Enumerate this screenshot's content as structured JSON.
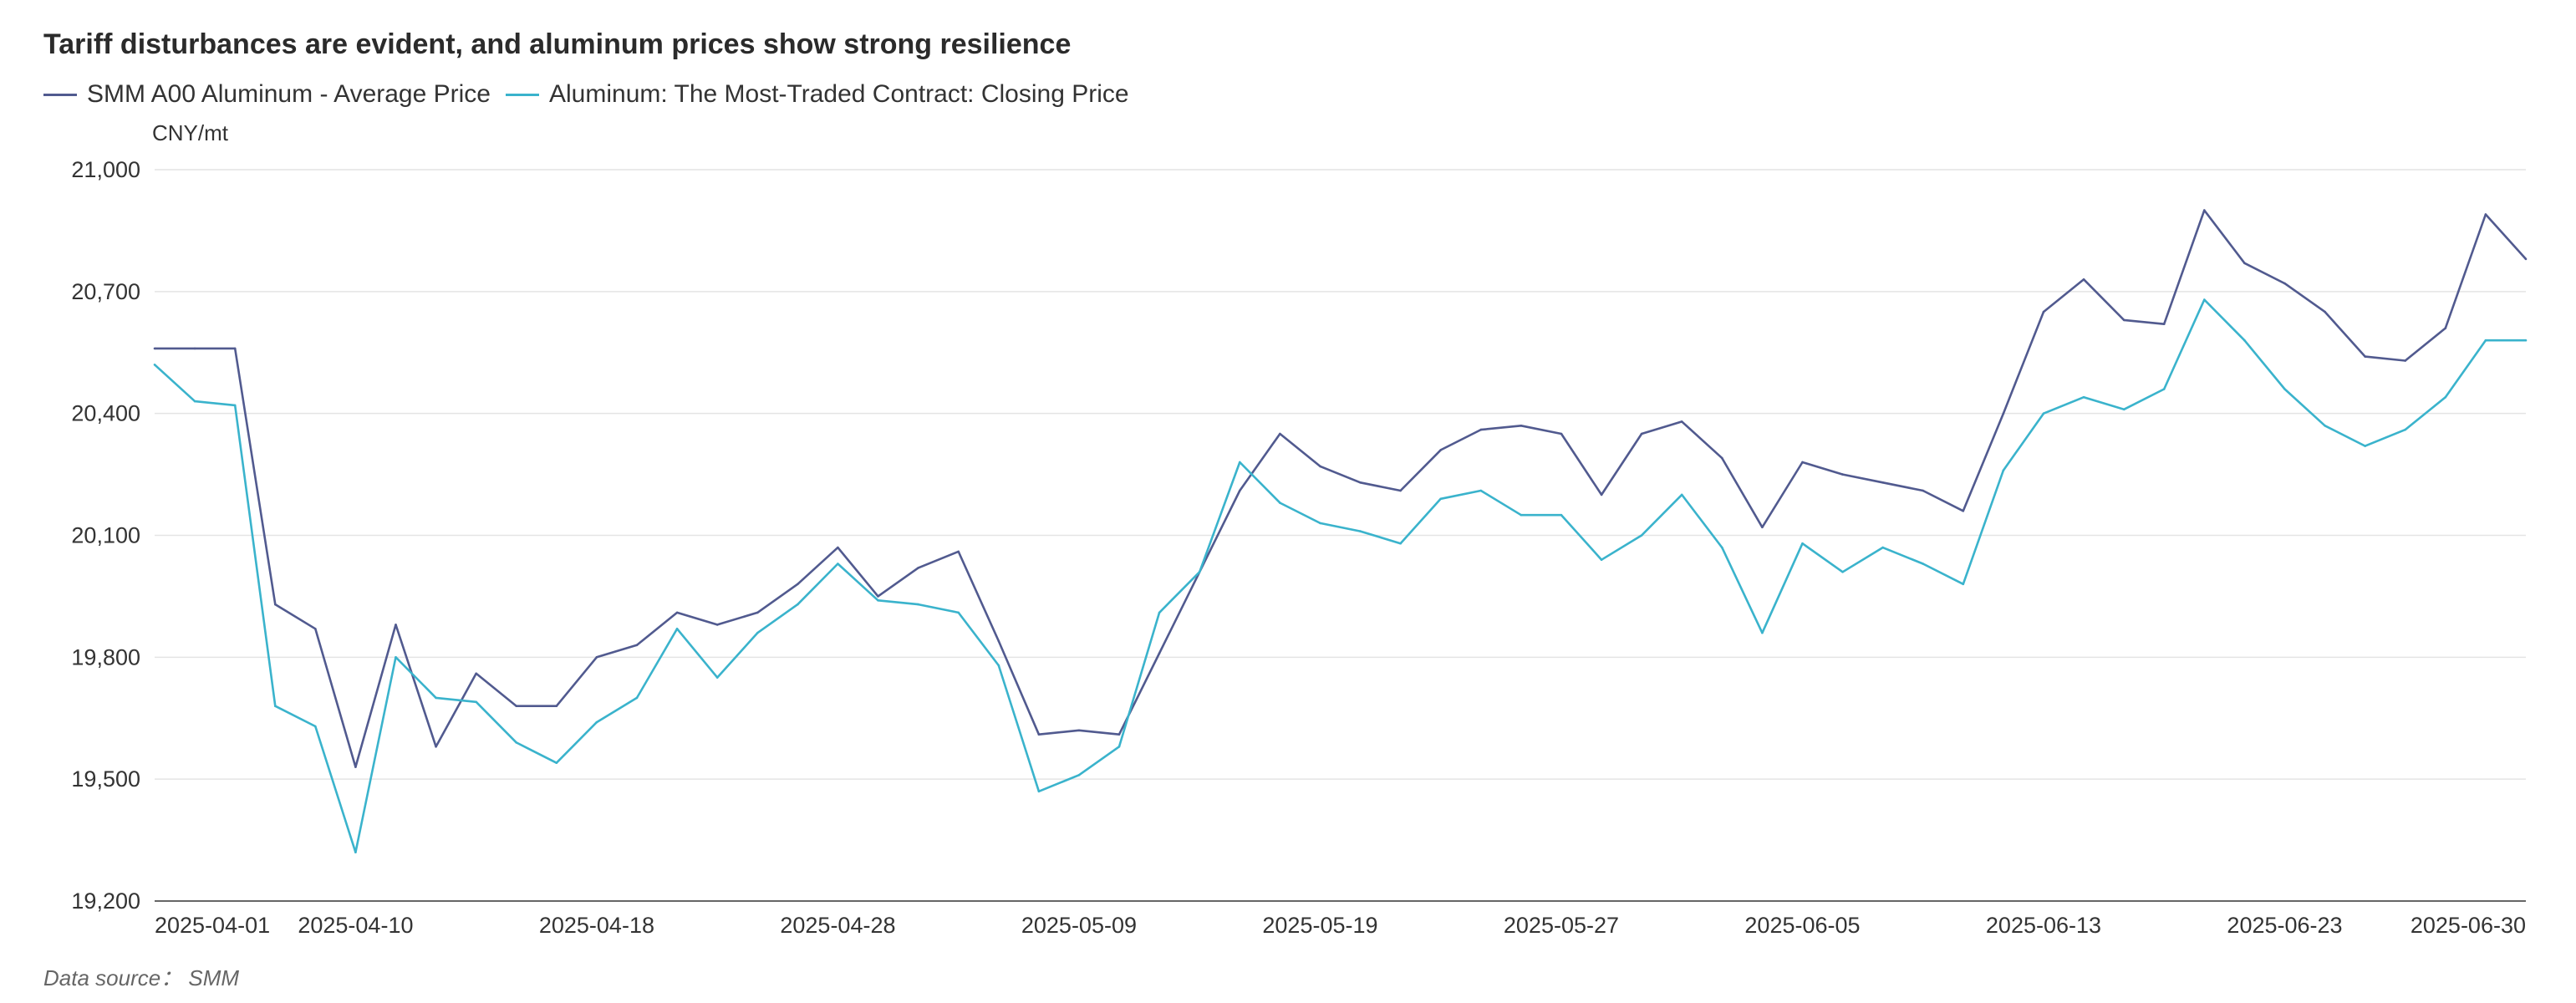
{
  "chart_data": {
    "type": "line",
    "title": "Tariff disturbances are evident, and aluminum prices show strong resilience",
    "unit_label": "CNY/mt",
    "source": "Data source： SMM",
    "ylim": [
      19200,
      21000
    ],
    "y_ticks": [
      "19,200",
      "19,500",
      "19,800",
      "20,100",
      "20,400",
      "20,700",
      "21,000"
    ],
    "y_tick_values": [
      19200,
      19500,
      19800,
      20100,
      20400,
      20700,
      21000
    ],
    "x_tick_labels": [
      "2025-04-01",
      "2025-04-10",
      "2025-04-18",
      "2025-04-28",
      "2025-05-09",
      "2025-05-19",
      "2025-05-27",
      "2025-06-05",
      "2025-06-13",
      "2025-06-23",
      "2025-06-30"
    ],
    "x_tick_indices": [
      0,
      5,
      11,
      17,
      23,
      29,
      35,
      41,
      47,
      53,
      58
    ],
    "grid": true,
    "legend_position": "top-left",
    "series": [
      {
        "name": "SMM A00 Aluminum - Average Price",
        "color": "#515a8f",
        "values": [
          20560,
          20560,
          20560,
          19930,
          19870,
          19530,
          19880,
          19580,
          19760,
          19680,
          19680,
          19800,
          19830,
          19910,
          19880,
          19910,
          19980,
          20070,
          19950,
          20020,
          20060,
          19840,
          19610,
          19620,
          19610,
          19810,
          20010,
          20210,
          20350,
          20270,
          20230,
          20210,
          20310,
          20360,
          20370,
          20350,
          20200,
          20350,
          20380,
          20290,
          20120,
          20280,
          20250,
          20230,
          20210,
          20160,
          20400,
          20650,
          20730,
          20630,
          20620,
          20900,
          20770,
          20720,
          20650,
          20540,
          20530,
          20610,
          20890,
          20780
        ]
      },
      {
        "name": "Aluminum: The Most-Traded Contract: Closing Price",
        "color": "#3ab3cc",
        "values": [
          20520,
          20430,
          20420,
          19680,
          19630,
          19320,
          19800,
          19700,
          19690,
          19590,
          19540,
          19640,
          19700,
          19870,
          19750,
          19860,
          19930,
          20030,
          19940,
          19930,
          19910,
          19780,
          19470,
          19510,
          19580,
          19910,
          20010,
          20280,
          20180,
          20130,
          20110,
          20080,
          20190,
          20210,
          20150,
          20150,
          20040,
          20100,
          20200,
          20070,
          19860,
          20080,
          20010,
          20070,
          20030,
          19980,
          20260,
          20400,
          20440,
          20410,
          20460,
          20680,
          20580,
          20460,
          20370,
          20320,
          20360,
          20440,
          20580,
          20580
        ]
      }
    ]
  }
}
